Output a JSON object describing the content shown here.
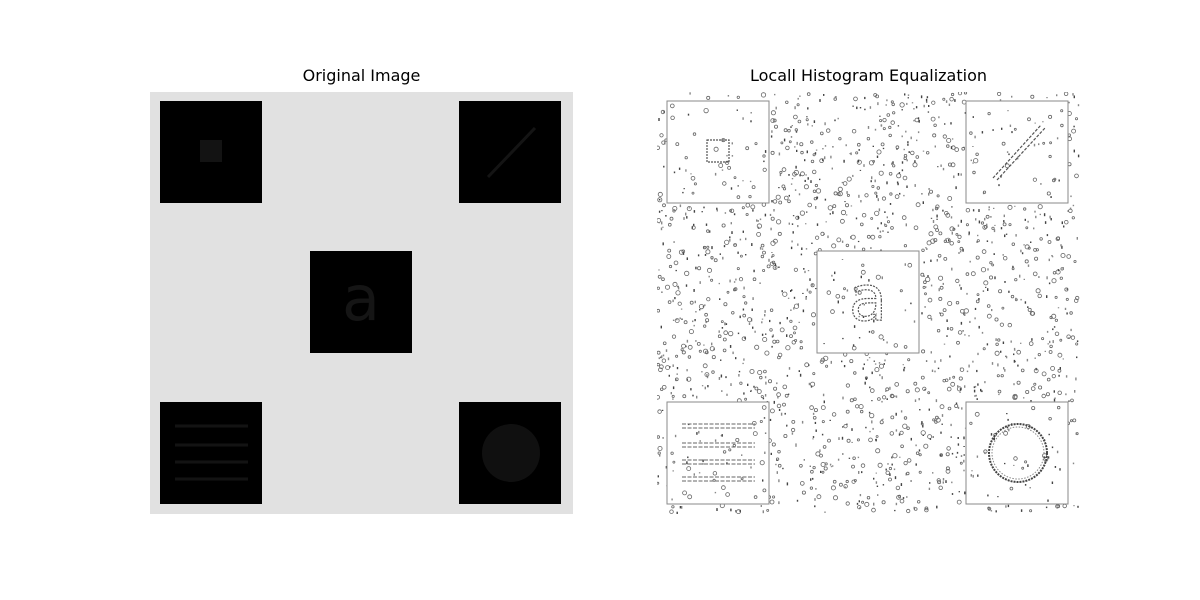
{
  "figure": {
    "left_title": "Original Image",
    "right_title": "Locall Histogram Equalization",
    "left_letter": "a",
    "right_letter": "a"
  },
  "colors": {
    "background": "#e1e1e1",
    "square_fill": "#000000",
    "inner_object": "#111111",
    "equalized_background": "#ffffff",
    "edge_stroke": "#777777",
    "noise": "#444444"
  },
  "icons": {
    "left_panel": "grayscale-test-image",
    "right_panel": "equalized-test-image"
  }
}
